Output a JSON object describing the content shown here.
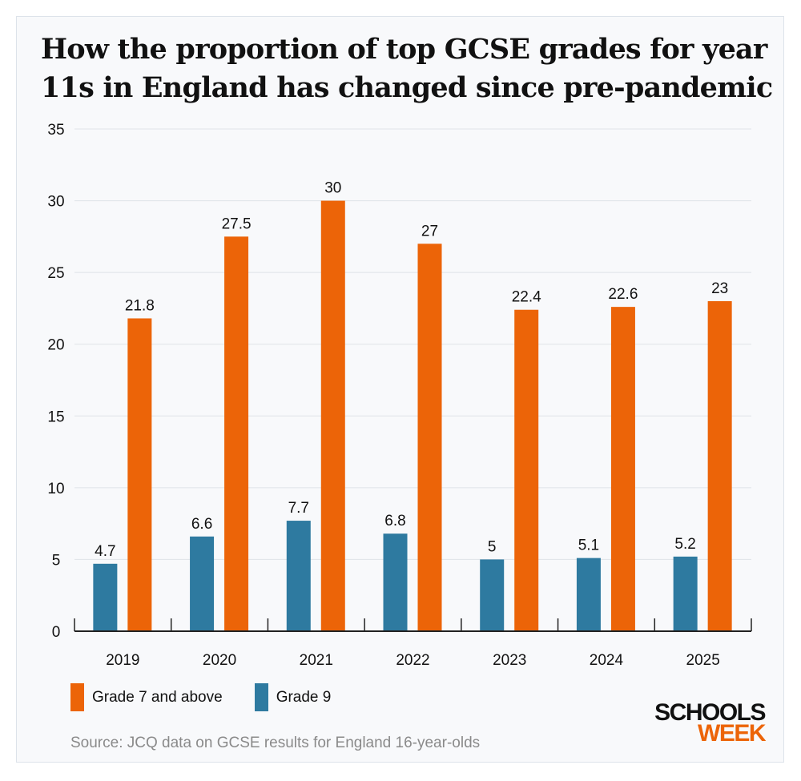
{
  "title": "How the proportion of top GCSE grades for year 11s in England has changed since pre-pandemic",
  "source": "Source: JCQ data on GCSE results for England 16-year-olds",
  "logo": {
    "line1": "SCHOOLS",
    "line2": "WEEK"
  },
  "colors": {
    "grade7": "#ec6408",
    "grade9": "#2e7aa0"
  },
  "chart_data": {
    "type": "bar",
    "title": "How the proportion of top GCSE grades for year 11s in England has changed since pre-pandemic",
    "xlabel": "",
    "ylabel": "",
    "categories": [
      "2019",
      "2020",
      "2021",
      "2022",
      "2023",
      "2024",
      "2025"
    ],
    "series": [
      {
        "name": "Grade 9",
        "color": "#2e7aa0",
        "values": [
          4.7,
          6.6,
          7.7,
          6.8,
          5,
          5.1,
          5.2
        ]
      },
      {
        "name": "Grade 7 and above",
        "color": "#ec6408",
        "values": [
          21.8,
          27.5,
          30,
          27,
          22.4,
          22.6,
          23
        ]
      }
    ],
    "ylim": [
      0,
      35
    ],
    "yticks": [
      0,
      5,
      10,
      15,
      20,
      25,
      30,
      35
    ],
    "grid": true,
    "data_labels": true,
    "legend": "bottom-left",
    "legend_order": [
      "Grade 7 and above",
      "Grade 9"
    ]
  }
}
